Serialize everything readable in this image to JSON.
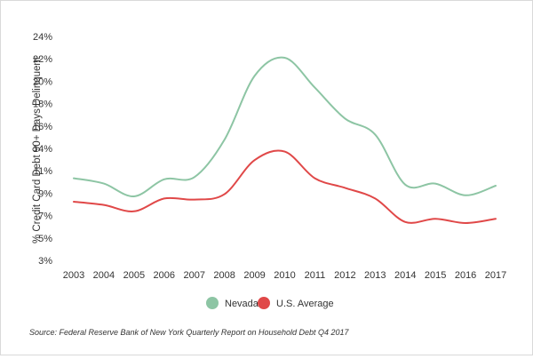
{
  "chart_data": {
    "type": "line",
    "x": [
      "2003",
      "2004",
      "2005",
      "2006",
      "2007",
      "2008",
      "2009",
      "2010",
      "2011",
      "2012",
      "2013",
      "2014",
      "2015",
      "2016",
      "2017"
    ],
    "ylabel": "% Credit Card Debt 90+ Days Delinquent",
    "xlabel": "",
    "ylim": [
      3,
      24
    ],
    "yticks": [
      "3%",
      "5%",
      "7%",
      "9%",
      "11%",
      "14%",
      "16%",
      "18%",
      "20%",
      "22%",
      "24%"
    ],
    "grid": false,
    "legend_position": "bottom",
    "series": [
      {
        "name": "Nevada",
        "color": "#8dc5a4",
        "values": [
          10.7,
          10.2,
          9.0,
          10.6,
          10.8,
          14.3,
          20.3,
          22.0,
          19.2,
          16.3,
          14.8,
          10.1,
          10.2,
          9.1,
          10.0
        ]
      },
      {
        "name": "U.S. Average",
        "color": "#e04848",
        "values": [
          8.5,
          8.2,
          7.6,
          8.8,
          8.7,
          9.2,
          12.4,
          13.2,
          10.7,
          9.8,
          8.8,
          6.6,
          6.9,
          6.5,
          6.9
        ]
      }
    ]
  },
  "footer": {
    "source": "Source: Federal Reserve Bank of New York Quarterly Report on Household Debt Q4 2017"
  }
}
